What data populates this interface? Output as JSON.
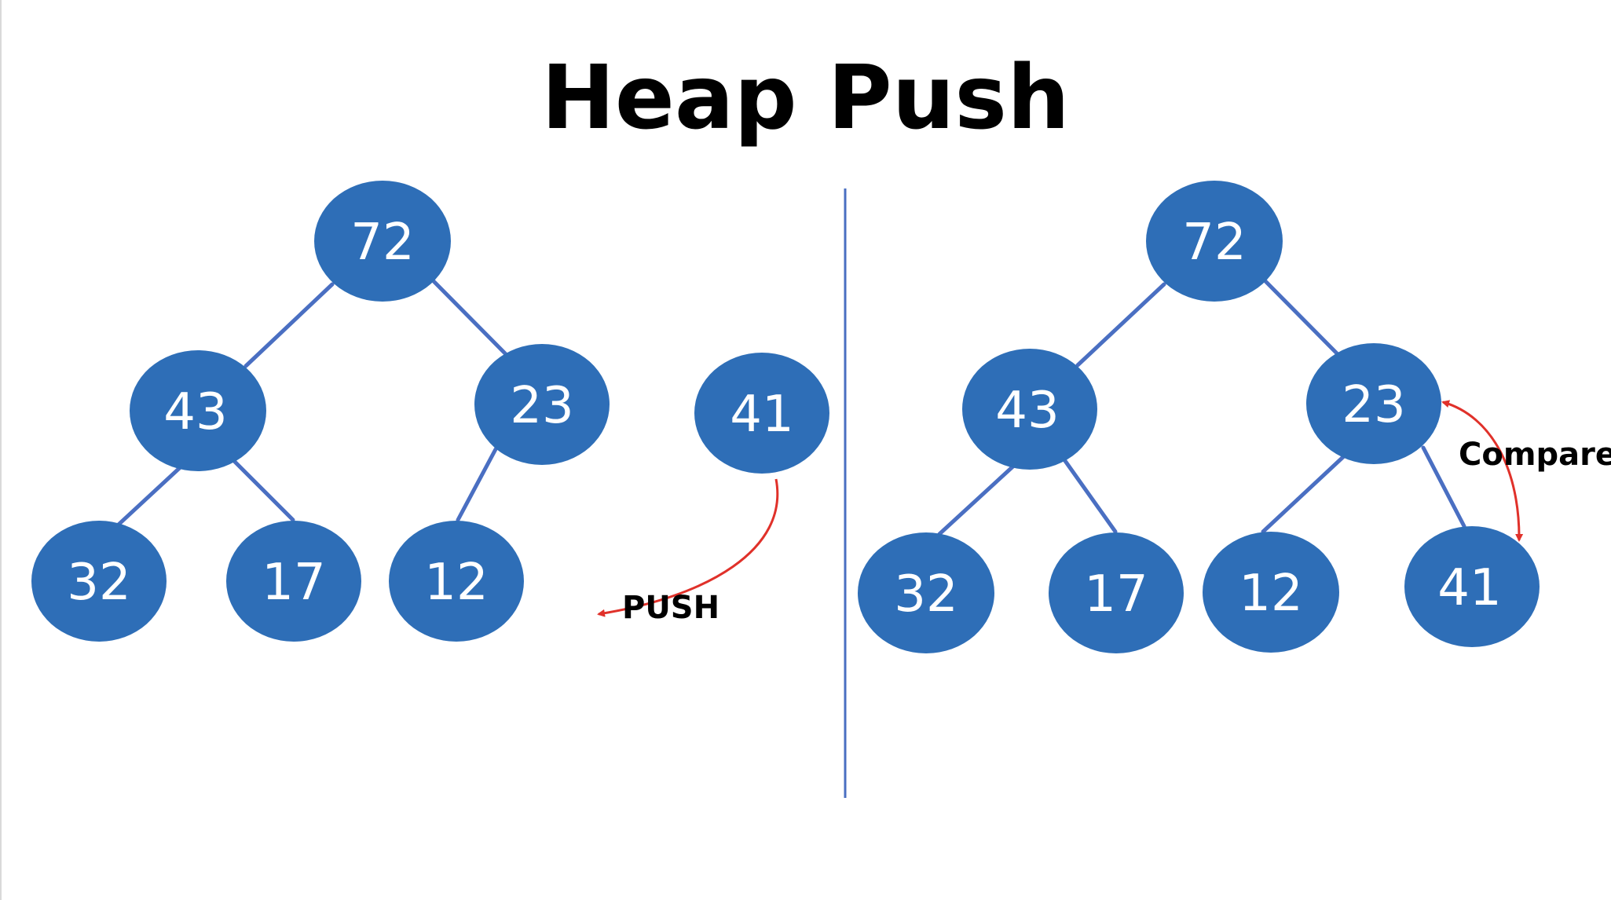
{
  "title": "Heap Push",
  "colors": {
    "node_fill": "#2E6EB7",
    "edge": "#4A6FC2",
    "arrow": "#E0312A",
    "divider": "#4A6FC2"
  },
  "left_tree": {
    "nodes": [
      "72",
      "43",
      "23",
      "32",
      "17",
      "12"
    ],
    "new_node": "41",
    "push_label": "PUSH"
  },
  "right_tree": {
    "nodes": [
      "72",
      "43",
      "23",
      "32",
      "17",
      "12",
      "41"
    ],
    "compare_label": "Compare"
  }
}
